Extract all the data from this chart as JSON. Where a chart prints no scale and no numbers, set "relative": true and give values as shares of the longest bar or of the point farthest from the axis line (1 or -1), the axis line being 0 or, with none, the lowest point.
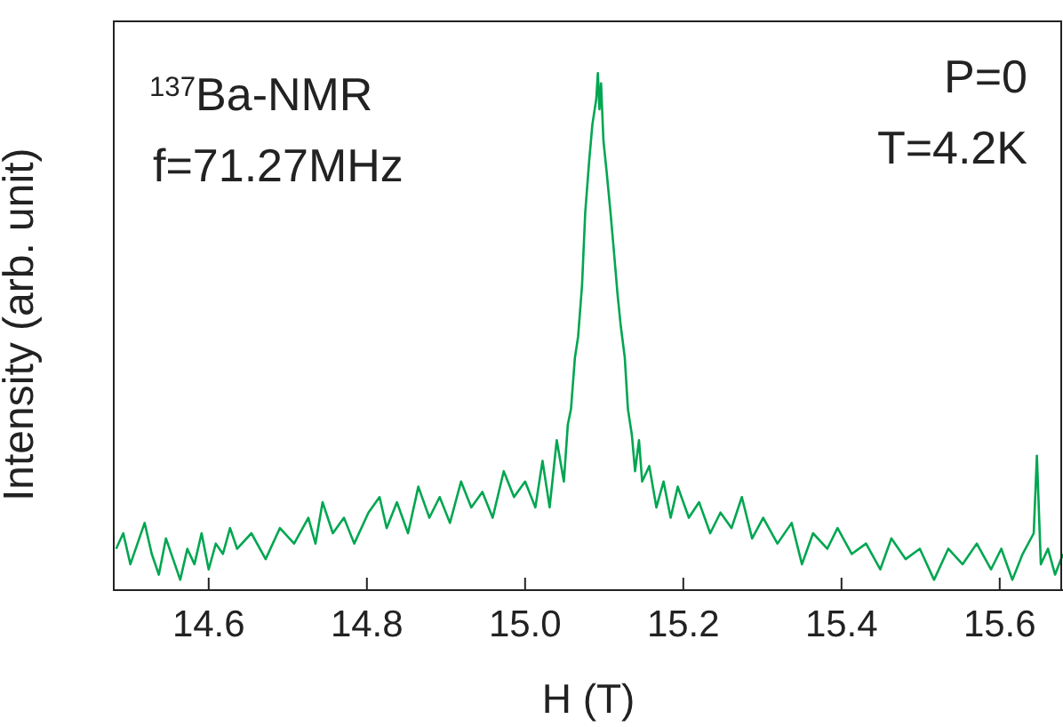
{
  "chart_data": {
    "type": "line",
    "xlabel": "H (T)",
    "ylabel": "Intensity (arb. unit)",
    "relative": true,
    "marker": "none",
    "line_style": "solid",
    "annotations": [
      "$^{137}$Ba-NMR",
      "f=71.27MHz",
      "P=0",
      "T=4.2K"
    ],
    "xlim": [
      14.48,
      15.68
    ],
    "xticks": [
      {
        "value": 14.6,
        "label": "14.6"
      },
      {
        "value": 14.8,
        "label": "14.8"
      },
      {
        "value": 15.0,
        "label": "15.0"
      },
      {
        "value": 15.2,
        "label": "15.2"
      },
      {
        "value": 15.4,
        "label": "15.4"
      },
      {
        "value": 15.6,
        "label": "15.6"
      }
    ],
    "series": [
      {
        "color": "#00a651",
        "x": [
          14.483,
          14.492,
          14.501,
          14.51,
          14.519,
          14.528,
          14.537,
          14.546,
          14.555,
          14.564,
          14.573,
          14.582,
          14.591,
          14.6,
          14.609,
          14.618,
          14.627,
          14.636,
          14.654,
          14.672,
          14.69,
          14.708,
          14.726,
          14.735,
          14.744,
          14.757,
          14.771,
          14.784,
          14.802,
          14.816,
          14.825,
          14.838,
          14.852,
          14.865,
          14.879,
          14.892,
          14.905,
          14.919,
          14.932,
          14.946,
          14.959,
          14.973,
          14.986,
          15.0,
          15.013,
          15.022,
          15.031,
          15.04,
          15.049,
          15.054,
          15.058,
          15.063,
          15.067,
          15.072,
          15.076,
          15.081,
          15.085,
          15.09,
          15.092,
          15.094,
          15.096,
          15.099,
          15.103,
          15.108,
          15.112,
          15.117,
          15.121,
          15.126,
          15.13,
          15.135,
          15.139,
          15.144,
          15.148,
          15.157,
          15.166,
          15.175,
          15.184,
          15.193,
          15.207,
          15.22,
          15.234,
          15.247,
          15.261,
          15.274,
          15.287,
          15.301,
          15.319,
          15.337,
          15.35,
          15.364,
          15.382,
          15.395,
          15.413,
          15.431,
          15.449,
          15.463,
          15.481,
          15.499,
          15.517,
          15.535,
          15.553,
          15.571,
          15.589,
          15.602,
          15.616,
          15.629,
          15.643,
          15.647,
          15.652,
          15.661,
          15.67,
          15.68
        ],
        "values": [
          0.08,
          0.11,
          0.05,
          0.09,
          0.13,
          0.07,
          0.03,
          0.1,
          0.06,
          0.02,
          0.08,
          0.05,
          0.11,
          0.04,
          0.09,
          0.07,
          0.12,
          0.08,
          0.11,
          0.06,
          0.12,
          0.09,
          0.14,
          0.09,
          0.17,
          0.11,
          0.14,
          0.09,
          0.15,
          0.18,
          0.12,
          0.17,
          0.11,
          0.2,
          0.14,
          0.18,
          0.13,
          0.21,
          0.16,
          0.19,
          0.14,
          0.23,
          0.18,
          0.21,
          0.16,
          0.25,
          0.16,
          0.29,
          0.21,
          0.32,
          0.35,
          0.45,
          0.49,
          0.59,
          0.73,
          0.83,
          0.9,
          0.95,
          1,
          0.93,
          0.98,
          0.87,
          0.81,
          0.73,
          0.66,
          0.57,
          0.51,
          0.45,
          0.35,
          0.3,
          0.23,
          0.29,
          0.21,
          0.24,
          0.16,
          0.21,
          0.14,
          0.2,
          0.14,
          0.17,
          0.11,
          0.15,
          0.12,
          0.18,
          0.1,
          0.14,
          0.09,
          0.13,
          0.05,
          0.11,
          0.08,
          0.12,
          0.07,
          0.09,
          0.04,
          0.1,
          0.06,
          0.08,
          0.02,
          0.08,
          0.05,
          0.09,
          0.04,
          0.08,
          0.02,
          0.07,
          0.11,
          0.26,
          0.05,
          0.08,
          0.03,
          0.07
        ]
      }
    ]
  }
}
